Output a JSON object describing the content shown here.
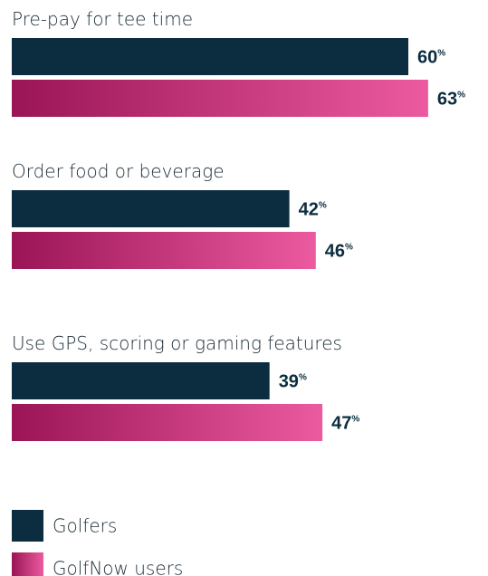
{
  "chart_data": {
    "type": "bar",
    "orientation": "horizontal",
    "categories": [
      "Pre-pay for tee time",
      "Order food or beverage",
      "Use GPS, scoring or gaming features"
    ],
    "series": [
      {
        "name": "Golfers",
        "values": [
          60,
          42,
          39
        ],
        "color": "#0b2d3f"
      },
      {
        "name": "GolfNow users",
        "values": [
          63,
          46,
          47
        ],
        "color_start": "#9a1556",
        "color_end": "#ec5a9f"
      }
    ],
    "value_suffix": "%",
    "xlim": [
      0,
      70
    ],
    "grid": false,
    "legend_position": "bottom-left"
  }
}
